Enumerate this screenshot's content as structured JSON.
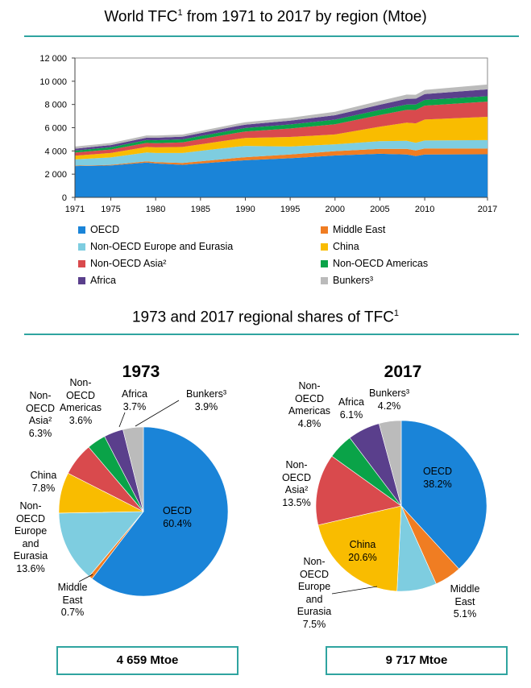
{
  "area_chart": {
    "title": "World TFC",
    "title_sup": "1",
    "title_rest": " from 1971 to 2017 by region (Mtoe)"
  },
  "pies": {
    "title": "1973 and 2017 regional shares of TFC",
    "title_sup": "1",
    "pie1973": {
      "year": "1973",
      "total": "4 659 Mtoe",
      "labels": {
        "oecd": [
          "OECD",
          "60.4%"
        ],
        "me": [
          "Middle",
          "East",
          "0.7%"
        ],
        "eurasia": [
          "Non-",
          "OECD",
          "Europe",
          "and",
          "Eurasia",
          "13.6%"
        ],
        "china": [
          "China",
          "7.8%"
        ],
        "asia": [
          "Non-",
          "OECD",
          "Asia²",
          "6.3%"
        ],
        "americas": [
          "Non-",
          "OECD",
          "Americas",
          "3.6%"
        ],
        "africa": [
          "Africa",
          "3.7%"
        ],
        "bunkers": [
          "Bunkers³",
          "3.9%"
        ]
      }
    },
    "pie2017": {
      "year": "2017",
      "total": "9 717 Mtoe",
      "labels": {
        "oecd": [
          "OECD",
          "38.2%"
        ],
        "me": [
          "Middle",
          "East",
          "5.1%"
        ],
        "eurasia": [
          "Non-",
          "OECD",
          "Europe",
          "and",
          "Eurasia",
          "7.5%"
        ],
        "china": [
          "China",
          "20.6%"
        ],
        "asia": [
          "Non-",
          "OECD",
          "Asia²",
          "13.5%"
        ],
        "americas": [
          "Non-",
          "OECD",
          "Americas",
          "4.8%"
        ],
        "africa": [
          "Africa",
          "6.1%"
        ],
        "bunkers": [
          "Bunkers³",
          "4.2%"
        ]
      }
    }
  },
  "colors": {
    "oecd": "#1a84d8",
    "me": "#f07d22",
    "eurasia": "#7ecde0",
    "china": "#f9bc00",
    "asia": "#d94a4d",
    "americas": "#0aa348",
    "africa": "#5a3f8c",
    "bunkers": "#bbbbbb"
  },
  "legend": [
    {
      "key": "oecd",
      "label": "OECD"
    },
    {
      "key": "me",
      "label": "Middle East"
    },
    {
      "key": "eurasia",
      "label": "Non-OECD Europe and Eurasia"
    },
    {
      "key": "china",
      "label": "China"
    },
    {
      "key": "asia",
      "label": "Non-OECD Asia²"
    },
    {
      "key": "americas",
      "label": "Non-OECD Americas"
    },
    {
      "key": "africa",
      "label": "Africa"
    },
    {
      "key": "bunkers",
      "label": "Bunkers³"
    }
  ],
  "chart_data": [
    {
      "type": "area",
      "stacked": true,
      "ylim": [
        0,
        12000
      ],
      "yticks": [
        0,
        2000,
        4000,
        6000,
        8000,
        10000,
        12000
      ],
      "ytick_labels": [
        "0",
        "2 000",
        "4 000",
        "6 000",
        "8 000",
        "10 000",
        "12 000"
      ],
      "xlim": [
        1971,
        2017
      ],
      "xticks": [
        1971,
        1975,
        1980,
        1985,
        1990,
        1995,
        2000,
        2005,
        2010,
        2017
      ],
      "grid": false,
      "legend_position": "bottom",
      "x": [
        1971,
        1975,
        1979,
        1980,
        1983,
        1985,
        1989,
        1990,
        1995,
        2000,
        2005,
        2008,
        2009,
        2010,
        2017
      ],
      "series": [
        {
          "name": "OECD",
          "key": "oecd",
          "values": [
            2700,
            2750,
            3000,
            2920,
            2800,
            2920,
            3150,
            3200,
            3370,
            3610,
            3750,
            3700,
            3550,
            3700,
            3710
          ]
        },
        {
          "name": "Middle East",
          "key": "me",
          "values": [
            30,
            50,
            100,
            110,
            160,
            190,
            250,
            260,
            320,
            370,
            430,
            480,
            495,
            510,
            495
          ]
        },
        {
          "name": "Non-OECD Europe and Eurasia",
          "key": "eurasia",
          "values": [
            540,
            640,
            770,
            790,
            860,
            900,
            960,
            970,
            690,
            590,
            660,
            690,
            650,
            690,
            730
          ]
        },
        {
          "name": "China",
          "key": "china",
          "values": [
            320,
            380,
            470,
            490,
            520,
            560,
            660,
            680,
            820,
            850,
            1250,
            1560,
            1680,
            1800,
            2000
          ]
        },
        {
          "name": "Non-OECD Asia",
          "key": "asia",
          "values": [
            270,
            300,
            350,
            360,
            400,
            440,
            530,
            560,
            730,
            880,
            1000,
            1100,
            1150,
            1200,
            1310
          ]
        },
        {
          "name": "Non-OECD Americas",
          "key": "americas",
          "values": [
            160,
            200,
            240,
            245,
            255,
            270,
            300,
            305,
            345,
            395,
            440,
            470,
            475,
            490,
            465
          ]
        },
        {
          "name": "Africa",
          "key": "africa",
          "values": [
            170,
            185,
            210,
            215,
            235,
            250,
            280,
            285,
            330,
            380,
            450,
            490,
            500,
            510,
            595
          ]
        },
        {
          "name": "Bunkers",
          "key": "bunkers",
          "values": [
            190,
            180,
            195,
            200,
            180,
            185,
            205,
            210,
            250,
            290,
            330,
            360,
            340,
            350,
            410
          ]
        }
      ]
    },
    {
      "type": "pie",
      "title": "1973",
      "total": "4 659 Mtoe",
      "labels": [
        "OECD",
        "Middle East",
        "Non-OECD Europe and Eurasia",
        "China",
        "Non-OECD Asia",
        "Non-OECD Americas",
        "Africa",
        "Bunkers"
      ],
      "keys": [
        "oecd",
        "me",
        "eurasia",
        "china",
        "asia",
        "americas",
        "africa",
        "bunkers"
      ],
      "values": [
        60.4,
        0.7,
        13.6,
        7.8,
        6.3,
        3.6,
        3.7,
        3.9
      ]
    },
    {
      "type": "pie",
      "title": "2017",
      "total": "9 717 Mtoe",
      "labels": [
        "OECD",
        "Middle East",
        "Non-OECD Europe and Eurasia",
        "China",
        "Non-OECD Asia",
        "Non-OECD Americas",
        "Africa",
        "Bunkers"
      ],
      "keys": [
        "oecd",
        "me",
        "eurasia",
        "china",
        "asia",
        "americas",
        "africa",
        "bunkers"
      ],
      "values": [
        38.2,
        5.1,
        7.5,
        20.6,
        13.5,
        4.8,
        6.1,
        4.2
      ]
    }
  ]
}
